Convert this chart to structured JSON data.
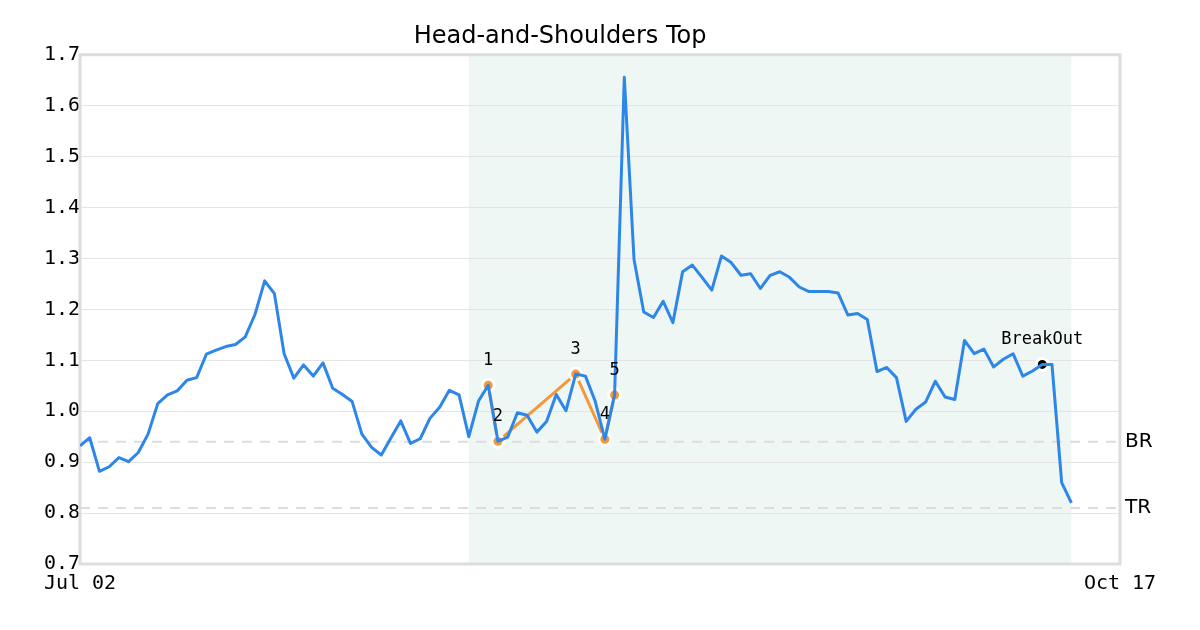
{
  "chart_data": {
    "type": "line",
    "title": "Head-and-Shoulders Top",
    "x": [
      "--07-02",
      "--07-03",
      "--07-04",
      "--07-05",
      "--07-06",
      "--07-07",
      "--07-08",
      "--07-09",
      "--07-10",
      "--07-11",
      "--07-12",
      "--07-13",
      "--07-14",
      "--07-15",
      "--07-16",
      "--07-17",
      "--07-18",
      "--07-19",
      "--07-20",
      "--07-21",
      "--07-22",
      "--07-23",
      "--07-24",
      "--07-25",
      "--07-26",
      "--07-27",
      "--07-28",
      "--07-29",
      "--07-30",
      "--07-31",
      "--08-01",
      "--08-02",
      "--08-03",
      "--08-04",
      "--08-05",
      "--08-06",
      "--08-07",
      "--08-08",
      "--08-09",
      "--08-10",
      "--08-11",
      "--08-12",
      "--08-13",
      "--08-14",
      "--08-15",
      "--08-16",
      "--08-17",
      "--08-18",
      "--08-19",
      "--08-20",
      "--08-21",
      "--08-22",
      "--08-23",
      "--08-24",
      "--08-25",
      "--08-26",
      "--08-27",
      "--08-28",
      "--08-29",
      "--08-30",
      "--08-31",
      "--09-01",
      "--09-02",
      "--09-03",
      "--09-04",
      "--09-05",
      "--09-06",
      "--09-07",
      "--09-08",
      "--09-09",
      "--09-10",
      "--09-11",
      "--09-12",
      "--09-13",
      "--09-14",
      "--09-15",
      "--09-16",
      "--09-17",
      "--09-18",
      "--09-19",
      "--09-20",
      "--09-21",
      "--09-22",
      "--09-23",
      "--09-24",
      "--09-25",
      "--09-26",
      "--09-27",
      "--09-28",
      "--09-29",
      "--09-30",
      "--10-01",
      "--10-02",
      "--10-03",
      "--10-04",
      "--10-05",
      "--10-06",
      "--10-07",
      "--10-08",
      "--10-09",
      "--10-10",
      "--10-11",
      "--10-12"
    ],
    "series": [
      {
        "color": "#2e86e8",
        "values": [
          0.932,
          0.948,
          0.882,
          0.891,
          0.909,
          0.901,
          0.919,
          0.955,
          1.015,
          1.032,
          1.04,
          1.061,
          1.066,
          1.112,
          1.12,
          1.127,
          1.131,
          1.146,
          1.19,
          1.256,
          1.231,
          1.113,
          1.065,
          1.091,
          1.069,
          1.095,
          1.045,
          1.033,
          1.019,
          0.955,
          0.929,
          0.914,
          0.948,
          0.981,
          0.937,
          0.946,
          0.986,
          1.008,
          1.041,
          1.032,
          0.95,
          1.02,
          1.051,
          0.941,
          0.949,
          0.997,
          0.992,
          0.959,
          0.98,
          1.033,
          1.001,
          1.073,
          1.069,
          1.02,
          0.945,
          1.032,
          1.656,
          1.298,
          1.195,
          1.184,
          1.216,
          1.174,
          1.274,
          1.287,
          1.263,
          1.238,
          1.305,
          1.292,
          1.267,
          1.27,
          1.241,
          1.267,
          1.274,
          1.263,
          1.244,
          1.235,
          1.235,
          1.235,
          1.232,
          1.189,
          1.192,
          1.18,
          1.078,
          1.086,
          1.066,
          0.98,
          1.004,
          1.018,
          1.059,
          1.028,
          1.023,
          1.139,
          1.113,
          1.122,
          1.087,
          1.102,
          1.113,
          1.069,
          1.079,
          1.092,
          1.092,
          0.86,
          0.82
        ]
      },
      {
        "type": "line",
        "color": "#f5973b",
        "marker": "circle",
        "x": [
          "--08-13",
          "--08-14",
          "--08-22",
          "--08-25",
          "--08-26"
        ],
        "values": [
          1.051,
          0.941,
          1.073,
          0.945,
          1.032
        ]
      },
      {
        "type": "scatter",
        "color": "#000000",
        "marker": "circle",
        "x": [
          "--10-09"
        ],
        "values": [
          1.092
        ]
      }
    ],
    "xlim": [
      "--07-02",
      "--10-17"
    ],
    "xticks": [
      {
        "value": "--07-02",
        "label": "Jul 02"
      },
      {
        "value": "--10-17",
        "label": "Oct 17"
      }
    ],
    "ylim": [
      0.7,
      1.7
    ],
    "yticks": [
      0.7,
      0.8,
      0.9,
      {
        "value": 1.0,
        "label": "1.0"
      },
      1.1,
      1.2,
      1.3,
      1.4,
      1.5,
      1.6,
      1.7
    ],
    "grid": "y",
    "legend": false,
    "bands": [
      {
        "axis": "x",
        "from": "--08-11",
        "to": "--10-12",
        "color": "#eef7f3"
      }
    ],
    "ref_lines": [
      {
        "axis": "y",
        "value": 0.94,
        "label": "BR",
        "color": "#dddddd",
        "line_style": "dashed"
      },
      {
        "axis": "y",
        "value": 0.81,
        "label": "TR",
        "color": "#dddddd",
        "line_style": "dashed"
      }
    ],
    "annotations": [
      {
        "text": "1",
        "x": "--08-13",
        "y": 1.051
      },
      {
        "text": "2",
        "x": "--08-14",
        "y": 0.941
      },
      {
        "text": "3",
        "x": "--08-22",
        "y": 1.073
      },
      {
        "text": "4",
        "x": "--08-25",
        "y": 0.945
      },
      {
        "text": "5",
        "x": "--08-26",
        "y": 1.032
      },
      {
        "text": "BreakOut",
        "x": "--10-09",
        "y": 1.092
      }
    ]
  }
}
